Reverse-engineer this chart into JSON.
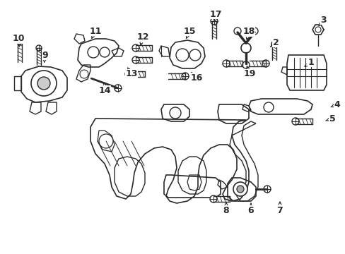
{
  "bg_color": "#ffffff",
  "line_color": "#2a2a2a",
  "figsize": [
    4.89,
    3.6
  ],
  "dpi": 100,
  "labels": [
    [
      "1",
      440,
      88,
      430,
      95
    ],
    [
      "2",
      390,
      60,
      382,
      67
    ],
    [
      "3",
      457,
      28,
      449,
      40
    ],
    [
      "4",
      477,
      148,
      465,
      153
    ],
    [
      "5",
      470,
      168,
      458,
      172
    ],
    [
      "6",
      355,
      298,
      355,
      285
    ],
    [
      "7",
      396,
      298,
      396,
      282
    ],
    [
      "8",
      320,
      298,
      320,
      283
    ],
    [
      "9",
      64,
      78,
      62,
      92
    ],
    [
      "10",
      26,
      55,
      28,
      70
    ],
    [
      "11",
      135,
      44,
      128,
      58
    ],
    [
      "12",
      202,
      52,
      198,
      68
    ],
    [
      "13",
      186,
      105,
      180,
      95
    ],
    [
      "14",
      148,
      128,
      148,
      116
    ],
    [
      "15",
      268,
      44,
      262,
      58
    ],
    [
      "16",
      278,
      110,
      268,
      100
    ],
    [
      "17",
      305,
      20,
      303,
      35
    ],
    [
      "18",
      352,
      45,
      348,
      60
    ],
    [
      "19",
      353,
      105,
      348,
      90
    ]
  ]
}
